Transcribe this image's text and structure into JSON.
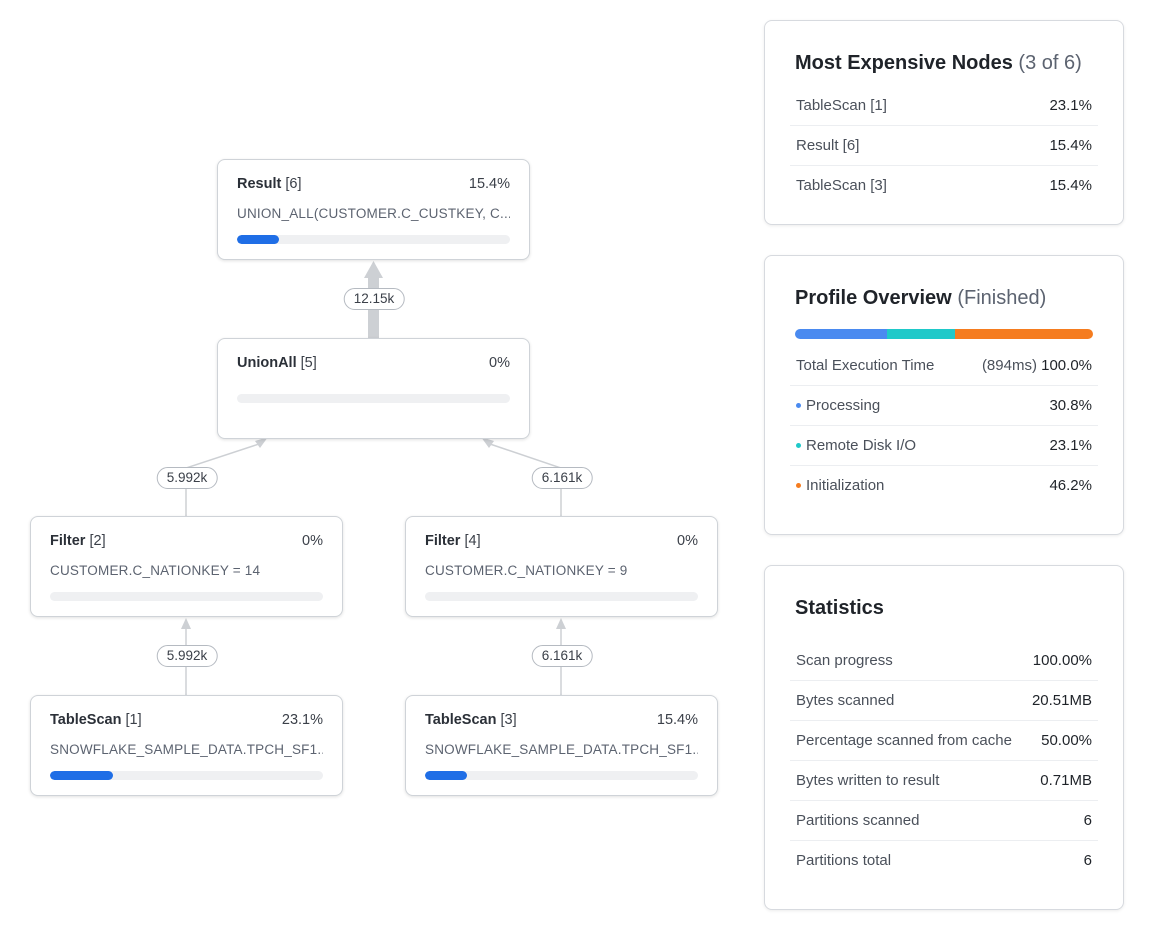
{
  "graph": {
    "nodes": {
      "result": {
        "name": "Result",
        "id": "[6]",
        "pct": "15.4%",
        "desc": "UNION_ALL(CUSTOMER.C_CUSTKEY, C...",
        "fill": 0.154
      },
      "unionall": {
        "name": "UnionAll",
        "id": "[5]",
        "pct": "0%",
        "desc": "",
        "fill": 0
      },
      "filter2": {
        "name": "Filter",
        "id": "[2]",
        "pct": "0%",
        "desc": "CUSTOMER.C_NATIONKEY = 14",
        "fill": 0
      },
      "filter4": {
        "name": "Filter",
        "id": "[4]",
        "pct": "0%",
        "desc": "CUSTOMER.C_NATIONKEY = 9",
        "fill": 0
      },
      "tablescan1": {
        "name": "TableScan",
        "id": "[1]",
        "pct": "23.1%",
        "desc": "SNOWFLAKE_SAMPLE_DATA.TPCH_SF1...",
        "fill": 0.231
      },
      "tablescan3": {
        "name": "TableScan",
        "id": "[3]",
        "pct": "15.4%",
        "desc": "SNOWFLAKE_SAMPLE_DATA.TPCH_SF1...",
        "fill": 0.154
      }
    },
    "edges": {
      "unionall_to_result": "12.15k",
      "filter2_to_unionall": "5.992k",
      "filter4_to_unionall": "6.161k",
      "tablescan1_to_filter2": "5.992k",
      "tablescan3_to_filter4": "6.161k"
    }
  },
  "expensive": {
    "title": "Most Expensive Nodes",
    "subtitle": "(3 of 6)",
    "rows": [
      {
        "label": "TableScan [1]",
        "value": "23.1%"
      },
      {
        "label": "Result [6]",
        "value": "15.4%"
      },
      {
        "label": "TableScan [3]",
        "value": "15.4%"
      }
    ]
  },
  "overview": {
    "title": "Profile Overview",
    "subtitle": "(Finished)",
    "total": {
      "label": "Total Execution Time",
      "time": "(894ms)",
      "value": "100.0%"
    },
    "segments": [
      {
        "label": "Processing",
        "value": "30.8%",
        "fraction": 0.308,
        "color": "#4a8af0"
      },
      {
        "label": "Remote Disk I/O",
        "value": "23.1%",
        "fraction": 0.231,
        "color": "#1fc9c9"
      },
      {
        "label": "Initialization",
        "value": "46.2%",
        "fraction": 0.462,
        "color": "#f57c1f"
      }
    ]
  },
  "statistics": {
    "title": "Statistics",
    "rows": [
      {
        "label": "Scan progress",
        "value": "100.00%"
      },
      {
        "label": "Bytes scanned",
        "value": "20.51MB"
      },
      {
        "label": "Percentage scanned from cache",
        "value": "50.00%"
      },
      {
        "label": "Bytes written to result",
        "value": "0.71MB"
      },
      {
        "label": "Partitions scanned",
        "value": "6"
      },
      {
        "label": "Partitions total",
        "value": "6"
      }
    ]
  },
  "colors": {
    "accent": "#1f6ee6",
    "edge": "#cdd0d4"
  }
}
